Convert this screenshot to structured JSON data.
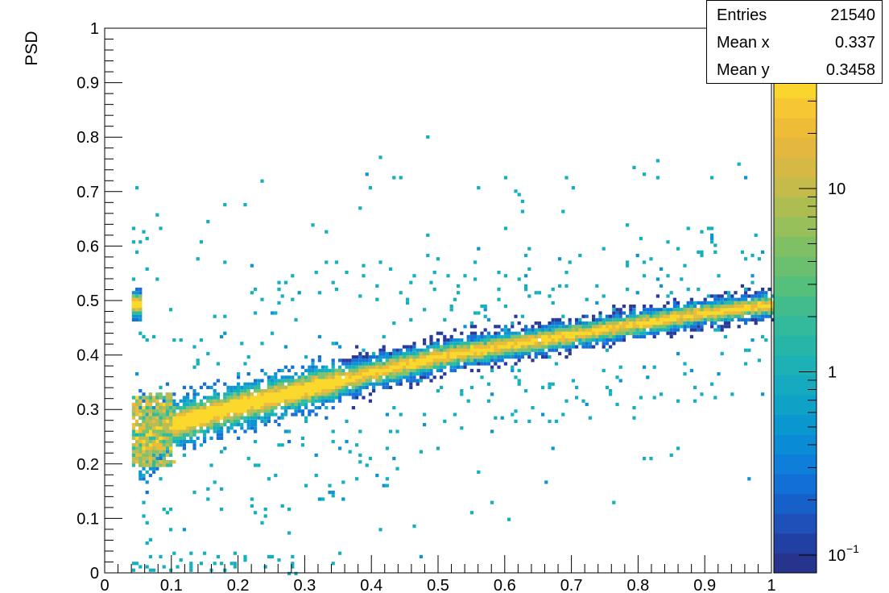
{
  "chart_data": {
    "type": "heatmap",
    "title": "",
    "xlabel": "",
    "ylabel": "PSD",
    "xlim": [
      0,
      1
    ],
    "ylim": [
      0,
      1
    ],
    "xticks": [
      "0",
      "0.1",
      "0.2",
      "0.3",
      "0.4",
      "0.5",
      "0.6",
      "0.7",
      "0.8",
      "0.9",
      "1"
    ],
    "yticks": [
      "0",
      "0.1",
      "0.2",
      "0.3",
      "0.4",
      "0.5",
      "0.6",
      "0.7",
      "0.8",
      "0.9",
      "1"
    ],
    "color_scale": {
      "scale": "log",
      "min": 0.08,
      "max": 40,
      "tick_labels": [
        "10",
        "1"
      ],
      "exponent_tick": {
        "base": "10",
        "exponent": "−1",
        "value": 0.1
      },
      "colors_low_to_high": [
        "#2a3a9c",
        "#1570d8",
        "#0e94d2",
        "#14b0bd",
        "#2fbba0",
        "#7cc371",
        "#bcbc55",
        "#ecbb3a",
        "#fad92c"
      ]
    },
    "band": {
      "description_points": [
        {
          "x": 0.05,
          "y": 0.24,
          "width": 0.03
        },
        {
          "x": 0.1,
          "y": 0.275,
          "width": 0.022
        },
        {
          "x": 0.2,
          "y": 0.31,
          "width": 0.02
        },
        {
          "x": 0.3,
          "y": 0.34,
          "width": 0.018
        },
        {
          "x": 0.4,
          "y": 0.37,
          "width": 0.016
        },
        {
          "x": 0.5,
          "y": 0.4,
          "width": 0.015
        },
        {
          "x": 0.6,
          "y": 0.42,
          "width": 0.014
        },
        {
          "x": 0.7,
          "y": 0.44,
          "width": 0.013
        },
        {
          "x": 0.8,
          "y": 0.46,
          "width": 0.013
        },
        {
          "x": 0.9,
          "y": 0.48,
          "width": 0.012
        },
        {
          "x": 1.0,
          "y": 0.495,
          "width": 0.012
        }
      ]
    },
    "stats": {
      "entries_label": "Entries",
      "entries_value": "21540",
      "meanx_label": "Mean x",
      "meanx_value": "0.337",
      "meany_label": "Mean y",
      "meany_value": "0.3458"
    }
  }
}
